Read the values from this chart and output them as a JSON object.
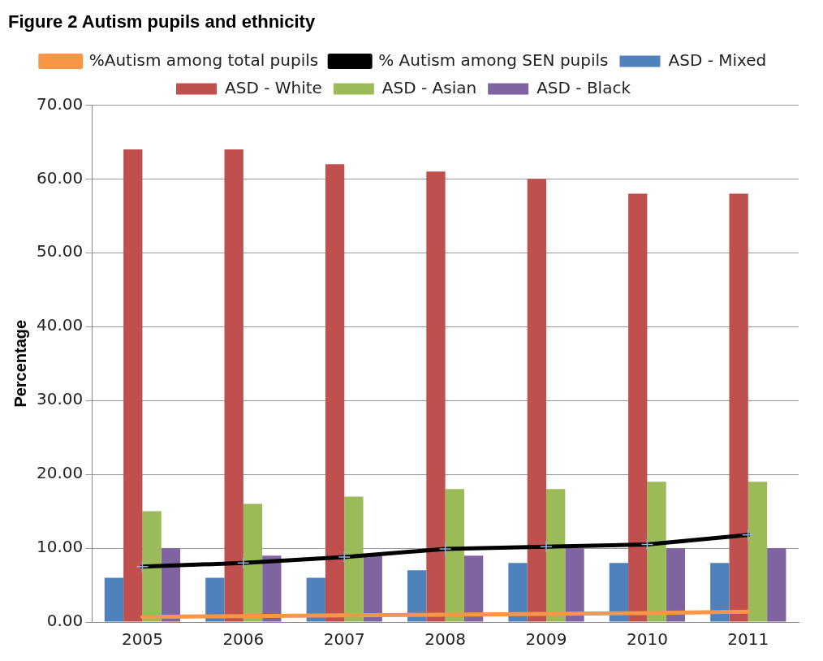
{
  "chart_data": {
    "type": "bar",
    "title": "Figure 2 Autism pupils and ethnicity",
    "ylabel": "Percentage",
    "categories": [
      "2005",
      "2006",
      "2007",
      "2008",
      "2009",
      "2010",
      "2011"
    ],
    "series": [
      {
        "name": "ASD - Mixed",
        "color": "#4f81bd",
        "values": [
          6,
          6,
          6,
          7,
          8,
          8,
          8
        ]
      },
      {
        "name": "ASD - White",
        "color": "#c0504d",
        "values": [
          64,
          64,
          62,
          61,
          60,
          58,
          58
        ]
      },
      {
        "name": "ASD - Asian",
        "color": "#9bbb59",
        "values": [
          15,
          16,
          17,
          18,
          18,
          19,
          19
        ]
      },
      {
        "name": "ASD - Black",
        "color": "#8064a2",
        "values": [
          10,
          9,
          9,
          9,
          10,
          10,
          10
        ]
      },
      {
        "name": "%Autism among total pupils",
        "type": "line",
        "color": "#f79646",
        "marker": "none",
        "values": [
          0.7,
          0.8,
          0.9,
          1.0,
          1.1,
          1.2,
          1.4
        ]
      },
      {
        "name": "% Autism among SEN pupils",
        "type": "line",
        "color": "#000000",
        "marker": "cross",
        "values": [
          7.5,
          8.0,
          8.8,
          9.9,
          10.2,
          10.5,
          11.8
        ]
      }
    ],
    "ylim": [
      0,
      70
    ],
    "yticks": [
      {
        "value": 0,
        "label": "0.00"
      },
      {
        "value": 10,
        "label": "10.00"
      },
      {
        "value": 20,
        "label": "20.00"
      },
      {
        "value": 30,
        "label": "30.00"
      },
      {
        "value": 40,
        "label": "40.00"
      },
      {
        "value": 50,
        "label": "50.00"
      },
      {
        "value": 60,
        "label": "60.00"
      },
      {
        "value": 70,
        "label": "70.00"
      }
    ],
    "grid": "y",
    "legend": "top"
  }
}
